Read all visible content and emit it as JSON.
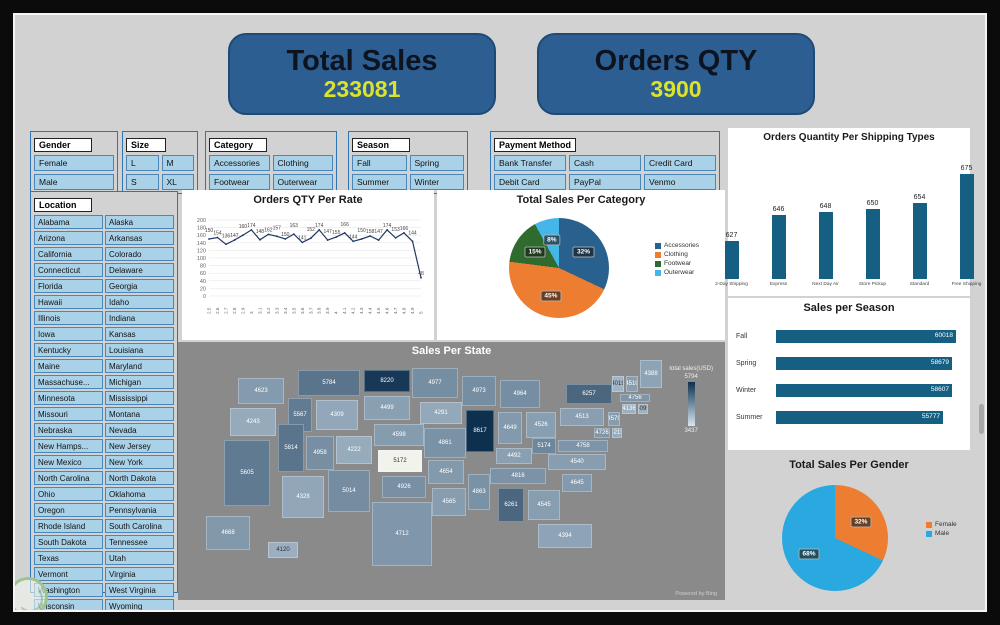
{
  "banners": {
    "total_sales": {
      "title": "Total Sales",
      "value": "233081"
    },
    "orders_qty": {
      "title": "Orders QTY",
      "value": "3900"
    }
  },
  "slicers": {
    "gender": {
      "title": "Gender",
      "items": [
        "Female",
        "Male"
      ]
    },
    "size": {
      "title": "Size",
      "items": [
        "L",
        "M",
        "S",
        "XL"
      ]
    },
    "category": {
      "title": "Category",
      "items": [
        "Accessories",
        "Clothing",
        "Footwear",
        "Outerwear"
      ]
    },
    "season": {
      "title": "Season",
      "items": [
        "Fall",
        "Spring",
        "Summer",
        "Winter"
      ]
    },
    "payment": {
      "title": "Payment Method",
      "items": [
        "Bank Transfer",
        "Cash",
        "Credit Card",
        "Debit Card",
        "PayPal",
        "Venmo"
      ]
    },
    "location": {
      "title": "Location",
      "items": [
        "Alabama",
        "Alaska",
        "Arizona",
        "Arkansas",
        "California",
        "Colorado",
        "Connecticut",
        "Delaware",
        "Florida",
        "Georgia",
        "Hawaii",
        "Idaho",
        "Illinois",
        "Indiana",
        "Iowa",
        "Kansas",
        "Kentucky",
        "Louisiana",
        "Maine",
        "Maryland",
        "Massachuse...",
        "Michigan",
        "Minnesota",
        "Mississippi",
        "Missouri",
        "Montana",
        "Nebraska",
        "Nevada",
        "New Hamps...",
        "New Jersey",
        "New Mexico",
        "New York",
        "North Carolina",
        "North Dakota",
        "Ohio",
        "Oklahoma",
        "Oregon",
        "Pennsylvania",
        "Rhode Island",
        "South Carolina",
        "South Dakota",
        "Tennessee",
        "Texas",
        "Utah",
        "Vermont",
        "Virginia",
        "Washington",
        "West Virginia",
        "Wisconsin",
        "Wyoming"
      ]
    }
  },
  "chart_data": [
    {
      "id": "orders_qty_per_rate",
      "type": "line",
      "title": "Orders QTY Per Rate",
      "x": [
        "2.5",
        "2.6",
        "2.7",
        "2.8",
        "2.9",
        "3",
        "3.1",
        "3.2",
        "3.3",
        "3.4",
        "3.5",
        "3.6",
        "3.7",
        "3.8",
        "3.9",
        "4",
        "4.1",
        "4.2",
        "4.3",
        "4.4",
        "4.5",
        "4.6",
        "4.7",
        "4.8",
        "4.9",
        "5"
      ],
      "values": [
        150,
        154,
        136,
        147,
        160,
        174,
        148,
        162,
        157,
        150,
        163,
        141,
        152,
        174,
        147,
        155,
        166,
        144,
        150,
        158,
        147,
        174,
        153,
        166,
        144,
        48
      ],
      "ylim": [
        0,
        200
      ],
      "ytick_step": 20,
      "line_color": "#1f3864"
    },
    {
      "id": "sales_per_category",
      "type": "pie",
      "title": "Total Sales Per Category",
      "labels": [
        "Accessories",
        "Clothing",
        "Footwear",
        "Outerwear"
      ],
      "values_pct": [
        32,
        45,
        15,
        8
      ],
      "colors": [
        "#29618e",
        "#ed7d31",
        "#2f6b2f",
        "#45b6e8"
      ],
      "legend_position": "right"
    },
    {
      "id": "orders_per_shipping",
      "type": "bar",
      "title": "Orders Quantity Per Shipping Types",
      "categories": [
        "2-Day Shipping",
        "Express",
        "Next Day Air",
        "Store Pickup",
        "Standard",
        "Free Shipping"
      ],
      "values": [
        627,
        646,
        648,
        650,
        654,
        675
      ],
      "color": "#156082"
    },
    {
      "id": "sales_per_season",
      "type": "bar_h",
      "title": "Sales per Season",
      "categories": [
        "Fall",
        "Spring",
        "Winter",
        "Summer"
      ],
      "values": [
        60018,
        58679,
        58607,
        55777
      ],
      "color": "#156082"
    },
    {
      "id": "sales_per_gender",
      "type": "pie",
      "title": "Total Sales Per Gender",
      "labels": [
        "Female",
        "Male"
      ],
      "values_pct": [
        32,
        68
      ],
      "colors": [
        "#ed7d31",
        "#2aa8e0"
      ],
      "legend_position": "right"
    },
    {
      "id": "sales_per_state",
      "type": "choropleth",
      "title": "Sales Per State",
      "legend_title": "total sales(USD)",
      "legend_max": "5794",
      "legend_min": "3437",
      "attribution": "Powered by Bing",
      "states": [
        {
          "code": "WA",
          "value": 4623
        },
        {
          "code": "OR",
          "value": 4243
        },
        {
          "code": "CA",
          "value": 5605
        },
        {
          "code": "ID",
          "value": 5567
        },
        {
          "code": "NV",
          "value": 5814
        },
        {
          "code": "MT",
          "value": 5784
        },
        {
          "code": "WY",
          "value": 4309
        },
        {
          "code": "UT",
          "value": 4958
        },
        {
          "code": "CO",
          "value": 4222
        },
        {
          "code": "AZ",
          "value": 4328
        },
        {
          "code": "NM",
          "value": 5014
        },
        {
          "code": "ND",
          "value": 8220
        },
        {
          "code": "SD",
          "value": 4499
        },
        {
          "code": "NE",
          "value": 4598
        },
        {
          "code": "KS",
          "value": 5172,
          "highlight": true
        },
        {
          "code": "OK",
          "value": 4926
        },
        {
          "code": "TX",
          "value": 4712
        },
        {
          "code": "MN",
          "value": 4977
        },
        {
          "code": "IA",
          "value": 4291
        },
        {
          "code": "MO",
          "value": 4861
        },
        {
          "code": "AR",
          "value": 4654
        },
        {
          "code": "LA",
          "value": 4565
        },
        {
          "code": "WI",
          "value": 4973
        },
        {
          "code": "IL",
          "value": 8617
        },
        {
          "code": "MS",
          "value": 4863
        },
        {
          "code": "MI",
          "value": 4964
        },
        {
          "code": "IN",
          "value": 4649
        },
        {
          "code": "KY",
          "value": 4492
        },
        {
          "code": "TN",
          "value": 4816
        },
        {
          "code": "AL",
          "value": 6261
        },
        {
          "code": "OH",
          "value": 4526
        },
        {
          "code": "GA",
          "value": 4545
        },
        {
          "code": "FL",
          "value": 4394
        },
        {
          "code": "SC",
          "value": 4645
        },
        {
          "code": "NC",
          "value": 4540
        },
        {
          "code": "VA",
          "value": 4758
        },
        {
          "code": "WV",
          "value": 5174
        },
        {
          "code": "PA",
          "value": 4513
        },
        {
          "code": "NY",
          "value": 6257
        },
        {
          "code": "ME",
          "value": 4388
        },
        {
          "code": "VT",
          "value": 4019
        },
        {
          "code": "NH",
          "value": 4510
        },
        {
          "code": "MA",
          "value": 4756
        },
        {
          "code": "CT",
          "value": 4136
        },
        {
          "code": "RI",
          "value": 4095
        },
        {
          "code": "NJ",
          "value": 4579
        },
        {
          "code": "DE",
          "value": 4215
        },
        {
          "code": "MD",
          "value": 4726
        },
        {
          "code": "AK",
          "value": 4668
        },
        {
          "code": "HI",
          "value": 4120
        }
      ]
    }
  ]
}
